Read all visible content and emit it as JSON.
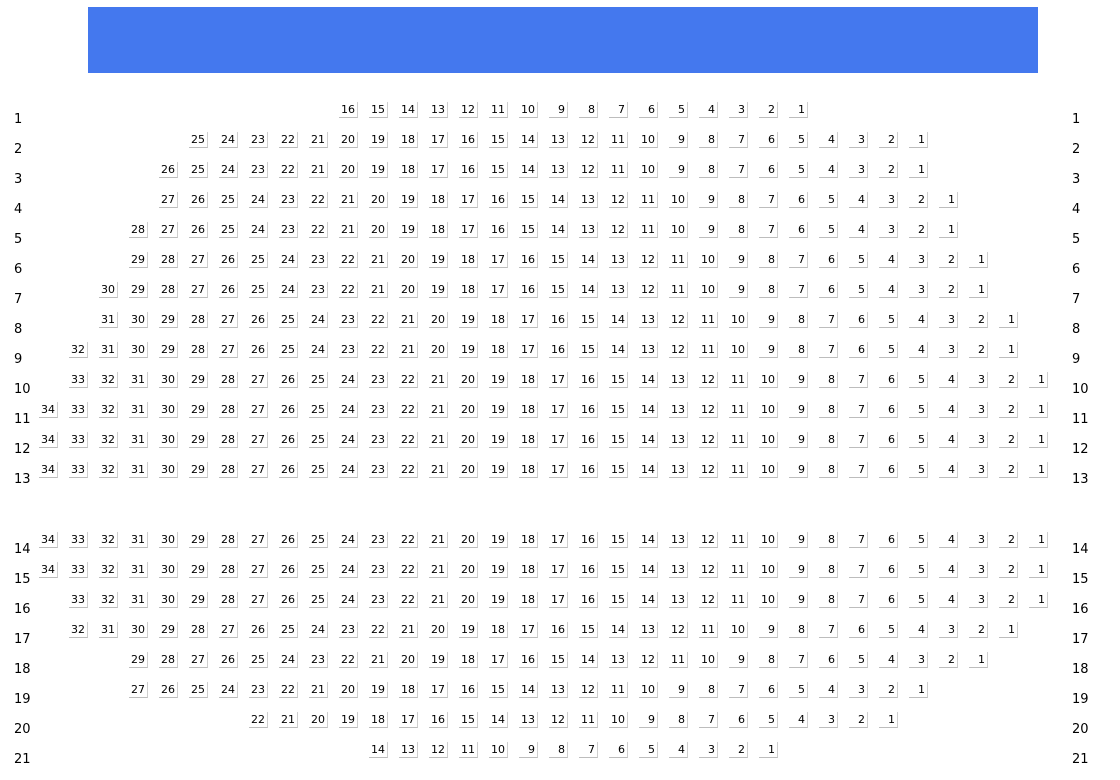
{
  "stage": {
    "color": "#4478EE"
  },
  "rows": [
    {
      "label": "1",
      "seats": 16
    },
    {
      "label": "2",
      "seats": 25
    },
    {
      "label": "3",
      "seats": 26
    },
    {
      "label": "4",
      "seats": 27
    },
    {
      "label": "5",
      "seats": 28
    },
    {
      "label": "6",
      "seats": 29
    },
    {
      "label": "7",
      "seats": 30
    },
    {
      "label": "8",
      "seats": 31
    },
    {
      "label": "9",
      "seats": 32
    },
    {
      "label": "10",
      "seats": 33
    },
    {
      "label": "11",
      "seats": 34
    },
    {
      "label": "12",
      "seats": 34
    },
    {
      "label": "13",
      "seats": 34
    },
    {
      "label": "14",
      "seats": 34
    },
    {
      "label": "15",
      "seats": 34
    },
    {
      "label": "16",
      "seats": 33
    },
    {
      "label": "17",
      "seats": 32
    },
    {
      "label": "18",
      "seats": 29
    },
    {
      "label": "19",
      "seats": 27
    },
    {
      "label": "20",
      "seats": 22
    },
    {
      "label": "21",
      "seats": 14
    }
  ]
}
